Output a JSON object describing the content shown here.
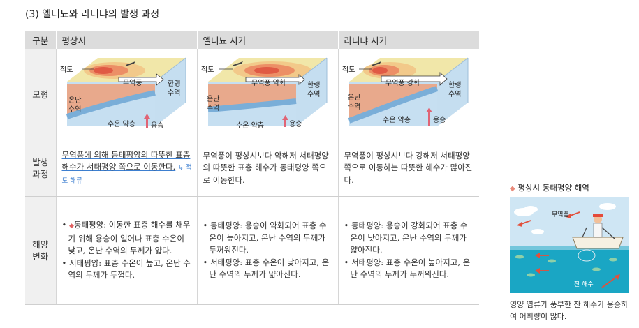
{
  "title": "(3) 엘니뇨와 라니냐의 발생 과정",
  "headers": [
    "구분",
    "평상시",
    "엘니뇨 시기",
    "라니냐 시기"
  ],
  "rows": {
    "model": "모형",
    "occurrence": "발생 과정",
    "ocean": "해양 변화"
  },
  "diagram_labels": {
    "equator": "적도",
    "trade_wind": "무역풍",
    "trade_wind_weak": "무역풍 약화",
    "trade_wind_strong": "무역풍 강화",
    "cold": "한랭 수역",
    "warm": "온난 수역",
    "thermocline": "수온 약층",
    "upwelling": "용승"
  },
  "occurrence": {
    "normal": "무역풍에 의해 동태평양의 따뜻한 표층 해수가 서태평양 쪽으로 이동한다.",
    "normal_note": "적도 해류",
    "elnino": "무역풍이 평상시보다 약해져 서태평양의 따뜻한 표층 해수가 동태평양 쪽으로 이동한다.",
    "lanina": "무역풍이 평상시보다 강해져 서태평양 쪽으로 이동하는 따뜻한 해수가 많아진다."
  },
  "ocean": {
    "normal": [
      "동태평양: 이동한 표층 해수를 채우기 위해 용승이 일어나 표층 수온이 낮고, 온난 수역의 두께가 얇다.",
      "서태평양: 표층 수온이 높고, 온난 수역의 두께가 두껍다."
    ],
    "elnino": [
      "동태평양: 용승이 약화되어 표층 수온이 높아지고, 온난 수역의 두께가 두꺼워진다.",
      "서태평양: 표층 수온이 낮아지고, 온난 수역의 두께가 얇아진다."
    ],
    "lanina": [
      "동태평양: 용승이 강화되어 표층 수온이 낮아지고, 온난 수역의 두께가 얇아진다.",
      "서태평양: 표층 수온이 높아지고, 온난 수역의 두께가 두꺼워진다."
    ]
  },
  "sidebar": {
    "title": "평상시 동태평양 해역",
    "label_wind": "무역풍",
    "label_cold": "찬 해수",
    "caption": "영양 염류가 풍부한 찬 해수가 용승하여 어획량이 많다."
  }
}
